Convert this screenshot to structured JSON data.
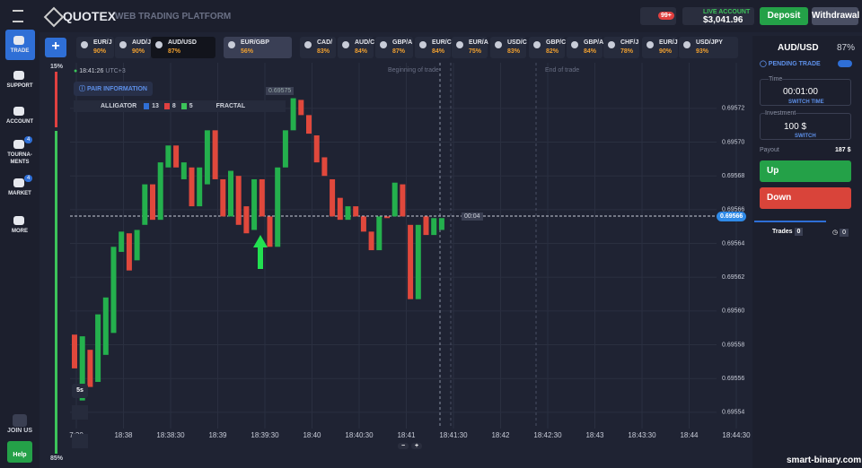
{
  "header": {
    "brand": "QUOTEX",
    "subtitle": "WEB TRADING PLATFORM",
    "notifications": "99+",
    "account_label": "LIVE ACCOUNT",
    "balance": "$3,041.96",
    "deposit": "Deposit",
    "withdrawal": "Withdrawal"
  },
  "sidebar": [
    {
      "lines": [
        "TRADE"
      ]
    },
    {
      "lines": [
        "SUPPORT"
      ]
    },
    {
      "lines": [
        "ACCOUNT"
      ]
    },
    {
      "lines": [
        "TOURNA-",
        "MENTS"
      ],
      "badge": "4"
    },
    {
      "lines": [
        "MARKET"
      ],
      "badge": "4"
    },
    {
      "lines": [
        "MORE"
      ]
    }
  ],
  "join_us": "JOIN US",
  "help": "Help",
  "tabs": [
    {
      "name": "EUR/J",
      "pct": "90%"
    },
    {
      "name": "AUD/J",
      "pct": "90%"
    },
    {
      "name": "AUD/USD",
      "pct": "87%"
    },
    {
      "name": "EUR/GBP",
      "pct": "56%"
    },
    {
      "name": "CAD/",
      "pct": "83%"
    },
    {
      "name": "AUD/C",
      "pct": "84%"
    },
    {
      "name": "GBP/A",
      "pct": "87%"
    },
    {
      "name": "EUR/C",
      "pct": "84%"
    },
    {
      "name": "EUR/A",
      "pct": "75%"
    },
    {
      "name": "USD/C",
      "pct": "83%"
    },
    {
      "name": "GBP/C",
      "pct": "82%"
    },
    {
      "name": "GBP/A",
      "pct": "84%"
    },
    {
      "name": "CHF/J",
      "pct": "78%"
    },
    {
      "name": "EUR/J",
      "pct": "90%"
    },
    {
      "name": "USD/JPY",
      "pct": "93%"
    }
  ],
  "chart": {
    "type": "candlestick",
    "time": "18:41:26",
    "utc": "UTC+3",
    "pair_info": "PAIR INFORMATION",
    "alligator": "ALLIGATOR",
    "alligator_params": [
      "13",
      "8",
      "5"
    ],
    "fractal": "FRACTAL",
    "beginning": "Beginning of trade",
    "end": "End of trade",
    "percent_top": "15%",
    "percent_bottom": "85%",
    "timeframe": "5s",
    "current_price": "0.69566",
    "countdown": "00:04",
    "hover_price": "0.69575",
    "ylim": [
      0.695524,
      0.695747
    ],
    "yticks": [
      0.69572,
      {
        "value": 0.6957,
        "label": "0.69570"
      },
      0.69568,
      0.69566,
      0.69564,
      0.69562,
      {
        "value": 0.6956,
        "label": "0.69560"
      },
      0.69558,
      0.69556,
      0.69554
    ],
    "xticks": [
      "7:30",
      "18:38",
      "18:38:30",
      "18:39",
      "18:39:30",
      "18:40",
      "18:40:30",
      "18:41",
      "18:41:30",
      "18:42",
      "18:42:30",
      "18:43",
      "18:43:30",
      "18:44",
      "18:44:30"
    ],
    "open": [
      0.695586,
      0.695547,
      0.695577,
      0.695558,
      0.695574,
      0.695587,
      0.695635,
      0.695646,
      0.69563,
      0.695651,
      0.695675,
      0.695654,
      0.695685,
      0.695698,
      0.695678,
      0.695685,
      0.695662,
      0.695675,
      0.695707,
      0.695678,
      0.695656,
      0.69568,
      0.695662,
      0.695648,
      0.695678,
      0.695656,
      0.695638,
      0.695685,
      0.695707,
      0.695725,
      0.695716,
      0.695704,
      0.695691,
      0.695678,
      0.695667,
      0.695654,
      0.695662,
      0.695656,
      0.695647,
      0.695636,
      0.695656,
      0.695656,
      0.695675,
      0.695651,
      0.695607,
      0.695656,
      0.695645,
      0.695648
    ],
    "close": [
      0.695566,
      0.695585,
      0.695555,
      0.695598,
      0.695608,
      0.695638,
      0.695647,
      0.695624,
      0.695648,
      0.695675,
      0.695654,
      0.695688,
      0.695698,
      0.695685,
      0.695688,
      0.695662,
      0.695685,
      0.695707,
      0.695678,
      0.695656,
      0.695683,
      0.695651,
      0.695646,
      0.695678,
      0.695656,
      0.695638,
      0.695685,
      0.695707,
      0.695726,
      0.695716,
      0.695705,
      0.695688,
      0.69568,
      0.695656,
      0.695654,
      0.695662,
      0.695656,
      0.695647,
      0.695636,
      0.695656,
      0.695655,
      0.695676,
      0.695656,
      0.695607,
      0.695651,
      0.695645,
      0.695655,
      0.695655
    ]
  },
  "panel": {
    "asset": "AUD/USD",
    "payout_pct": "87%",
    "pending": "PENDING TRADE",
    "time_label": "Time",
    "time": "00:01:00",
    "switch_time": "SWITCH TIME",
    "investment_label": "Investment",
    "investment": "100 $",
    "switch": "SWITCH",
    "payout_label": "Payout",
    "payout": "187 $",
    "up": "Up",
    "down": "Down",
    "trades": "Trades",
    "trades_count": "0",
    "pending_count": "0"
  },
  "watermark": "smart-binary.com"
}
